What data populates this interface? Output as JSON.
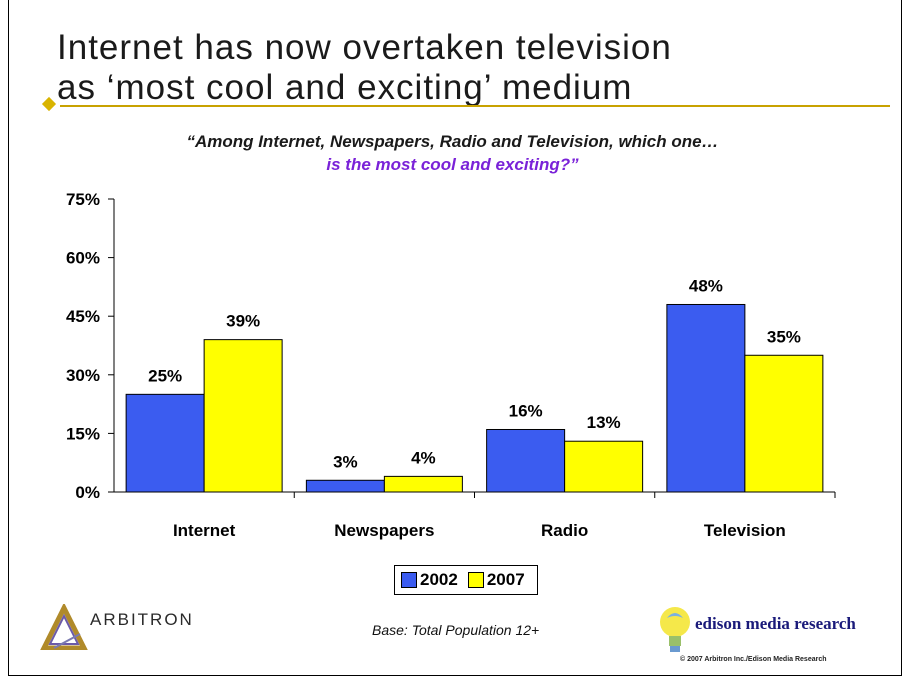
{
  "slide": {
    "title_line1": "Internet has now overtaken television",
    "title_line2": "as ‘most cool and exciting’ medium",
    "question_line1": "“Among Internet, Newspapers, Radio and Television, which one…",
    "question_line2": "is the most cool and exciting?”",
    "base_note": "Base:  Total Population 12+",
    "arbitron_logo_text": "ARBITRON",
    "edison_logo_text": "edison media research",
    "copyright": "© 2007 Arbitron Inc./Edison Media Research",
    "colors": {
      "accent_rule": "#c8a200",
      "question_highlight": "#7a22d8"
    }
  },
  "chart_data": {
    "type": "bar",
    "categories": [
      "Internet",
      "Newspapers",
      "Radio",
      "Television"
    ],
    "series": [
      {
        "name": "2002",
        "values": [
          25,
          3,
          16,
          48
        ],
        "labels": [
          "25%",
          "3%",
          "16%",
          "48%"
        ],
        "color": "#3b5cf0"
      },
      {
        "name": "2007",
        "values": [
          39,
          4,
          13,
          35
        ],
        "labels": [
          "39%",
          "4%",
          "13%",
          "35%"
        ],
        "color": "#ffff00"
      }
    ],
    "ylim": [
      0,
      75
    ],
    "yticks": [
      "0%",
      "15%",
      "30%",
      "45%",
      "60%",
      "75%"
    ],
    "ytick_values": [
      0,
      15,
      30,
      45,
      60,
      75
    ],
    "legend_position": "bottom-center",
    "grid": false
  }
}
